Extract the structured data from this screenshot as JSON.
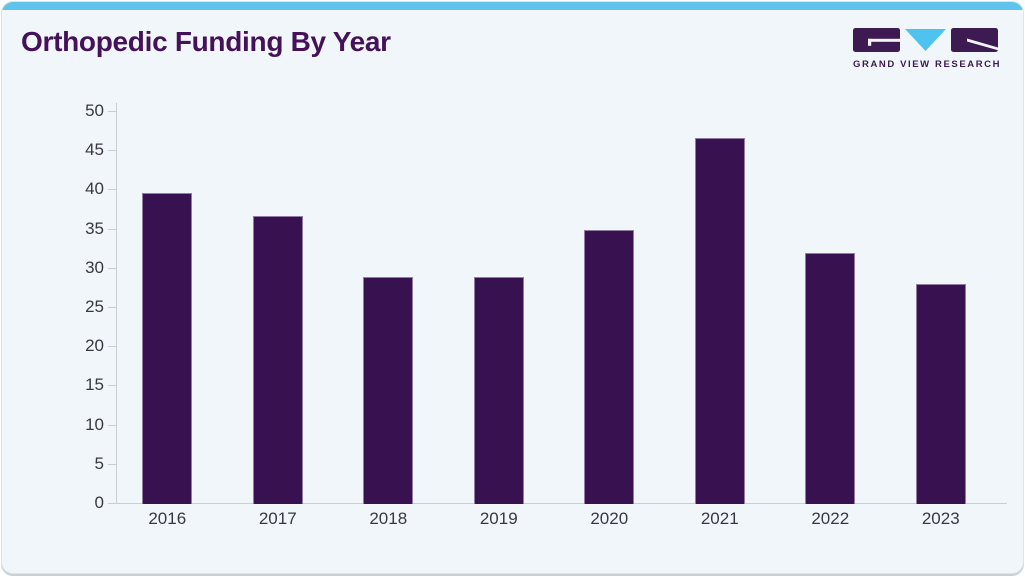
{
  "page": {
    "title": "Orthopedic Funding By Year"
  },
  "brand": {
    "name": "GRAND VIEW RESEARCH",
    "purple": "#3d1b52",
    "blue": "#4fc3ef"
  },
  "theme": {
    "card_background": "#f1f6fa",
    "top_bar": "#5fc3ec",
    "title_color": "#45125a",
    "bar_fill": "#371150",
    "axis_color": "#c9ced6",
    "tick_label_color": "#383843"
  },
  "chart_data": {
    "type": "bar",
    "title": "Orthopedic Funding By Year",
    "categories": [
      "2016",
      "2017",
      "2018",
      "2019",
      "2020",
      "2021",
      "2022",
      "2023"
    ],
    "values": [
      39.7,
      36.7,
      28.9,
      28.9,
      35.0,
      46.7,
      32.0,
      28.0
    ],
    "xlabel": "",
    "ylabel": "",
    "ylim": [
      0,
      50
    ],
    "yticks": [
      0,
      5,
      10,
      15,
      20,
      25,
      30,
      35,
      40,
      45,
      50
    ],
    "grid": false,
    "legend": false,
    "bar_color": "#371150"
  }
}
